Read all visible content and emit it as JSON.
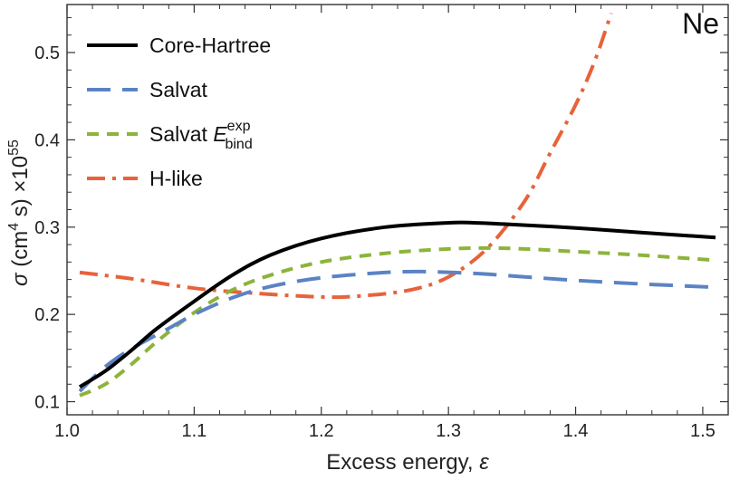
{
  "chart_data": {
    "type": "line",
    "corner_label": "Ne",
    "xlabel": "Excess energy, ",
    "xlabel_symbol": "ε",
    "ylabel": {
      "sigma": "σ",
      "paren_open": " (cm",
      "sup1": "4",
      "mid": " s) ×10",
      "sup2": "55"
    },
    "xlim": [
      1.0,
      1.52
    ],
    "ylim": [
      0.085,
      0.555
    ],
    "x_ticks": [
      1.0,
      1.1,
      1.2,
      1.3,
      1.4,
      1.5
    ],
    "x_tick_labels": [
      "1.0",
      "1.1",
      "1.2",
      "1.3",
      "1.4",
      "1.5"
    ],
    "y_ticks": [
      0.1,
      0.2,
      0.3,
      0.4,
      0.5
    ],
    "y_tick_labels": [
      "0.1",
      "0.2",
      "0.3",
      "0.4",
      "0.5"
    ],
    "legend_position": "top-left",
    "grid": false,
    "series": [
      {
        "name": "Core-Hartree",
        "color": "#000000",
        "style": "solid",
        "x": [
          1.01,
          1.03,
          1.05,
          1.07,
          1.1,
          1.13,
          1.16,
          1.2,
          1.25,
          1.3,
          1.32,
          1.35,
          1.4,
          1.45,
          1.51
        ],
        "y": [
          0.117,
          0.135,
          0.158,
          0.183,
          0.215,
          0.245,
          0.268,
          0.287,
          0.3,
          0.305,
          0.305,
          0.303,
          0.299,
          0.294,
          0.288
        ]
      },
      {
        "name": "Salvat",
        "color": "#5B83C4",
        "style": "long-dash",
        "x": [
          1.01,
          1.03,
          1.05,
          1.08,
          1.1,
          1.13,
          1.16,
          1.2,
          1.25,
          1.28,
          1.32,
          1.36,
          1.4,
          1.45,
          1.51
        ],
        "y": [
          0.112,
          0.14,
          0.16,
          0.184,
          0.2,
          0.219,
          0.232,
          0.242,
          0.248,
          0.249,
          0.247,
          0.243,
          0.239,
          0.235,
          0.231
        ]
      },
      {
        "name": "Salvat ",
        "name_base": "E",
        "name_sub": "bind",
        "name_sup": "exp",
        "color": "#8DB33B",
        "style": "short-dash",
        "x": [
          1.01,
          1.03,
          1.05,
          1.07,
          1.1,
          1.13,
          1.16,
          1.2,
          1.25,
          1.3,
          1.33,
          1.36,
          1.4,
          1.45,
          1.51
        ],
        "y": [
          0.107,
          0.12,
          0.142,
          0.168,
          0.202,
          0.228,
          0.245,
          0.26,
          0.27,
          0.275,
          0.276,
          0.275,
          0.272,
          0.268,
          0.262
        ]
      },
      {
        "name": "H-like",
        "color": "#E8623A",
        "style": "dash-dot",
        "x": [
          1.01,
          1.05,
          1.1,
          1.15,
          1.2,
          1.23,
          1.27,
          1.3,
          1.33,
          1.36,
          1.38,
          1.4,
          1.415,
          1.428
        ],
        "y": [
          0.248,
          0.241,
          0.23,
          0.224,
          0.22,
          0.221,
          0.228,
          0.243,
          0.275,
          0.33,
          0.385,
          0.44,
          0.49,
          0.545
        ]
      }
    ]
  }
}
